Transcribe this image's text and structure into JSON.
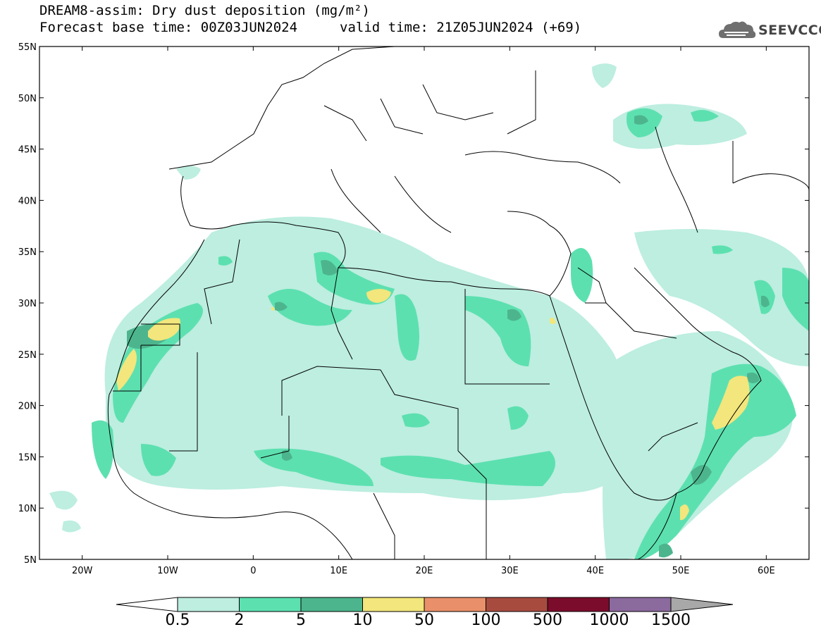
{
  "title": {
    "line1": "DREAM8-assim: Dry dust deposition (mg/m²)",
    "line2": "Forecast base time: 00Z03JUN2024",
    "valid": "valid time: 21Z05JUN2024 (+69)"
  },
  "logo": {
    "text": "SEEVCCC",
    "icon": "cloud-icon"
  },
  "map": {
    "lon_range": [
      -25,
      65
    ],
    "lat_range": [
      5,
      55
    ],
    "lat_ticks": [
      {
        "value": 55,
        "label": "55N"
      },
      {
        "value": 50,
        "label": "50N"
      },
      {
        "value": 45,
        "label": "45N"
      },
      {
        "value": 40,
        "label": "40N"
      },
      {
        "value": 35,
        "label": "35N"
      },
      {
        "value": 30,
        "label": "30N"
      },
      {
        "value": 25,
        "label": "25N"
      },
      {
        "value": 20,
        "label": "20N"
      },
      {
        "value": 15,
        "label": "15N"
      },
      {
        "value": 10,
        "label": "10N"
      },
      {
        "value": 5,
        "label": "5N"
      }
    ],
    "lon_ticks": [
      {
        "value": -20,
        "label": "20W"
      },
      {
        "value": -10,
        "label": "10W"
      },
      {
        "value": 0,
        "label": "0"
      },
      {
        "value": 10,
        "label": "10E"
      },
      {
        "value": 20,
        "label": "20E"
      },
      {
        "value": 30,
        "label": "30E"
      },
      {
        "value": 40,
        "label": "40E"
      },
      {
        "value": 50,
        "label": "50E"
      },
      {
        "value": 60,
        "label": "60E"
      }
    ]
  },
  "colorbar": {
    "labels": [
      "0.5",
      "2",
      "5",
      "10",
      "50",
      "100",
      "500",
      "1000",
      "1500"
    ],
    "colors": [
      "#bdeee0",
      "#5de0b0",
      "#4db58e",
      "#f2e67c",
      "#e9906a",
      "#a84b3f",
      "#7c0c2b",
      "#8b6a9e"
    ],
    "under_color": "#ffffff",
    "over_color": "#a8a8a8"
  }
}
